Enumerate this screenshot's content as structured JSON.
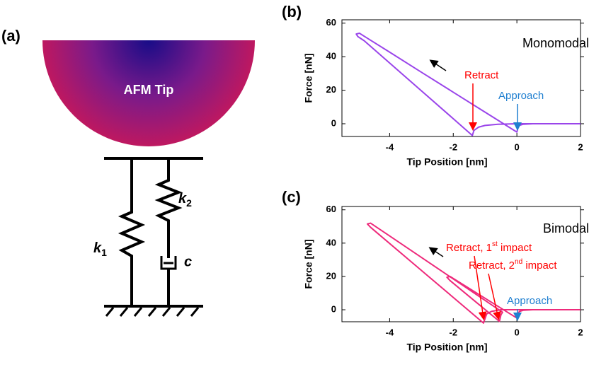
{
  "panels": {
    "a": "(a)",
    "b": "(b)",
    "c": "(c)"
  },
  "diagram": {
    "tip_label": "AFM Tip",
    "k1": [
      "k",
      "1"
    ],
    "k2": [
      "k",
      "2"
    ],
    "c": "c"
  },
  "chart_data": [
    {
      "type": "line",
      "color": "#9a45ea",
      "x": [
        2,
        1,
        0.5,
        0.2,
        0.08,
        0.03,
        0,
        -0.1,
        -1,
        -2,
        -3,
        -4,
        -4.7,
        -4.95,
        -5.05,
        -5.0,
        -4.8,
        -4,
        -3,
        -2,
        -1.4,
        -1.35,
        -1.2,
        -1,
        -0.6,
        0,
        1,
        2
      ],
      "values": [
        0,
        0,
        0,
        -0.3,
        -1,
        -2.5,
        -5,
        -3.8,
        6.9,
        18.8,
        30.7,
        42.7,
        51,
        54,
        53.5,
        52,
        49.5,
        36.2,
        19.6,
        3,
        -7,
        -4,
        -2,
        -1,
        -0.3,
        0,
        0,
        0
      ],
      "xlim": [
        -5.5,
        2
      ],
      "ylim": [
        -7.6,
        62
      ],
      "xticks": [
        -4,
        -2,
        0,
        2
      ],
      "yticks": [
        0,
        20,
        40,
        60
      ],
      "xlabel": "Tip Position [nm]",
      "ylabel": "Force [nN]",
      "annotations": [
        "Monomodal",
        "Retract",
        "Approach"
      ]
    },
    {
      "type": "line",
      "color": "#ee2a7b",
      "x": [
        2,
        1,
        0.5,
        0.2,
        0.08,
        0.03,
        0,
        -1,
        -2.1,
        -2.2,
        -2.1,
        -1.5,
        -0.55,
        -0.5,
        -0.45,
        -2,
        -3,
        -4,
        -4.6,
        -4.7,
        -4.6,
        -3,
        -2,
        -1.05,
        -0.95,
        -0.8,
        -0.5,
        0,
        1,
        2
      ],
      "values": [
        0,
        0,
        0,
        -0.3,
        -1,
        -2.5,
        -5,
        6.9,
        20,
        19.5,
        17.5,
        8,
        -7,
        -3,
        -1.5,
        18.5,
        31.4,
        44.3,
        52,
        51.5,
        49.5,
        23.6,
        7.4,
        -8,
        -2.5,
        -1,
        0,
        0,
        0,
        0
      ],
      "xlim": [
        -5.5,
        2
      ],
      "ylim": [
        -7.2,
        62
      ],
      "xticks": [
        -4,
        -2,
        0,
        2
      ],
      "yticks": [
        0,
        20,
        40,
        60
      ],
      "xlabel": "Tip Position [nm]",
      "ylabel": "Force [nN]",
      "annotations": [
        "Bimodal",
        "Approach"
      ],
      "retract_labels": [
        [
          "Retract, 1",
          "st",
          " impact"
        ],
        [
          "Retract, 2",
          "nd",
          " impact"
        ]
      ]
    }
  ]
}
